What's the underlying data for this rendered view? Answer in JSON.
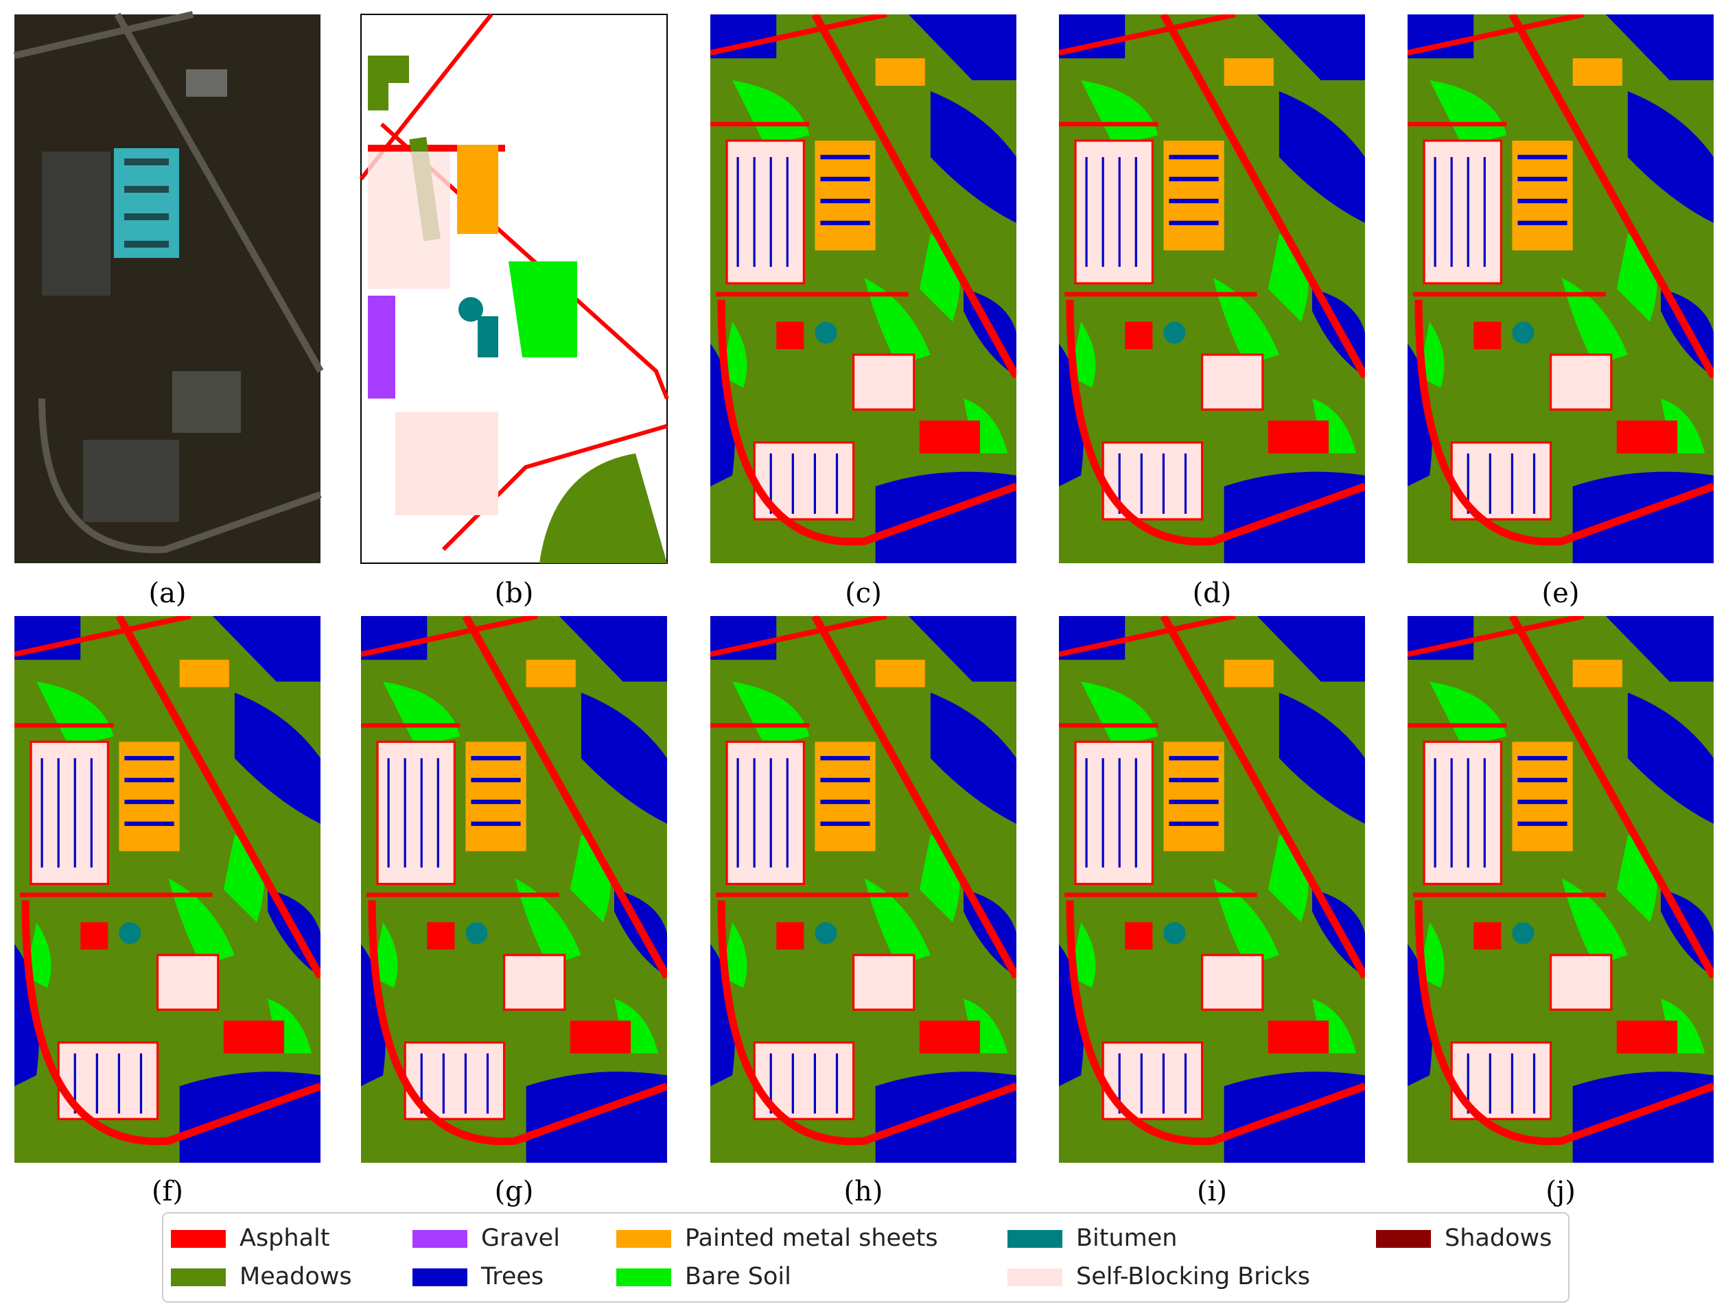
{
  "panels": [
    {
      "label": "(a)"
    },
    {
      "label": "(b)"
    },
    {
      "label": "(c)"
    },
    {
      "label": "(d)"
    },
    {
      "label": "(e)"
    },
    {
      "label": "(f)"
    },
    {
      "label": "(g)"
    },
    {
      "label": "(h)"
    },
    {
      "label": "(i)"
    },
    {
      "label": "(j)"
    }
  ],
  "legend": [
    {
      "name": "Asphalt",
      "color": "#ff0000"
    },
    {
      "name": "Meadows",
      "color": "#5a8a0a"
    },
    {
      "name": "Gravel",
      "color": "#a83cff"
    },
    {
      "name": "Trees",
      "color": "#0000c8"
    },
    {
      "name": "Painted metal sheets",
      "color": "#ffa500"
    },
    {
      "name": "Bare Soil",
      "color": "#00ee00"
    },
    {
      "name": "Bitumen",
      "color": "#008080"
    },
    {
      "name": "Self-Blocking Bricks",
      "color": "#ffe4e1"
    },
    {
      "name": "Shadows",
      "color": "#8b0000"
    }
  ]
}
